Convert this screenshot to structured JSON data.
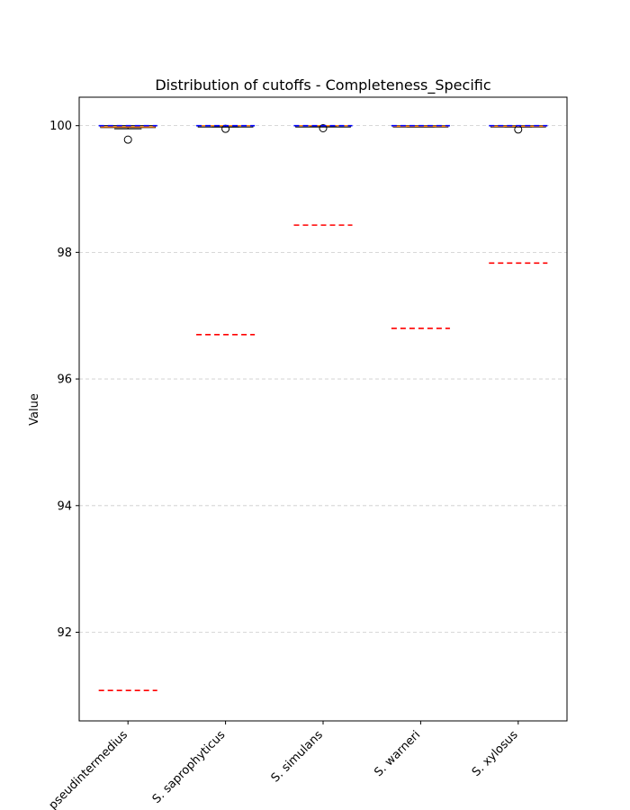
{
  "chart_data": {
    "type": "box",
    "title": "Distribution of cutoffs - Completeness_Specific",
    "xlabel": "",
    "ylabel": "Value",
    "ylim": [
      90.6,
      100.45
    ],
    "yticks": [
      92,
      94,
      96,
      98,
      100
    ],
    "grid": "y-dashed",
    "categories": [
      "S. pseudintermedius",
      "S. saprophyticus",
      "S. simulans",
      "S. warneri",
      "S. xylosus"
    ],
    "boxes": [
      {
        "q1": 99.97,
        "median": 99.98,
        "q3": 100.0,
        "whisker_low": 99.95,
        "whisker_high": 100.0,
        "outliers": [
          99.78
        ]
      },
      {
        "q1": 99.99,
        "median": 100.0,
        "q3": 100.0,
        "whisker_low": 99.98,
        "whisker_high": 100.0,
        "outliers": [
          99.95
        ]
      },
      {
        "q1": 99.99,
        "median": 100.0,
        "q3": 100.0,
        "whisker_low": 99.99,
        "whisker_high": 100.0,
        "outliers": [
          99.96
        ]
      },
      {
        "q1": 99.98,
        "median": 99.99,
        "q3": 100.0,
        "whisker_low": 99.98,
        "whisker_high": 100.0,
        "outliers": []
      },
      {
        "q1": 99.98,
        "median": 99.99,
        "q3": 100.0,
        "whisker_low": 99.98,
        "whisker_high": 100.0,
        "outliers": [
          99.94
        ]
      }
    ],
    "cutoff_lines": [
      {
        "value": 91.08,
        "color": "#ff0000"
      },
      {
        "value": 96.7,
        "color": "#ff0000"
      },
      {
        "value": 98.43,
        "color": "#ff0000"
      },
      {
        "value": 96.8,
        "color": "#ff0000"
      },
      {
        "value": 97.83,
        "color": "#ff0000"
      }
    ],
    "upper_lines": [
      {
        "value": 100.0,
        "color": "#0000ff"
      },
      {
        "value": 100.0,
        "color": "#0000ff"
      },
      {
        "value": 100.0,
        "color": "#0000ff"
      },
      {
        "value": 100.0,
        "color": "#0000ff"
      },
      {
        "value": 100.0,
        "color": "#0000ff"
      }
    ],
    "colors": {
      "median": "#ff7f0e",
      "grid": "#cccccc",
      "box": "#000000"
    }
  }
}
